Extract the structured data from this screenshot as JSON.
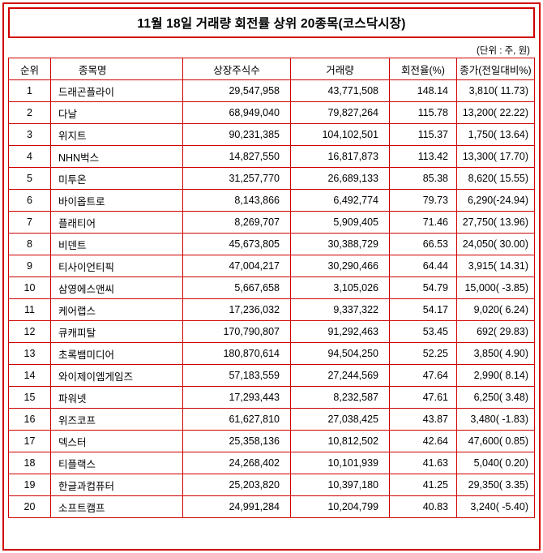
{
  "title": "11월 18일 거래량 회전률 상위 20종목(코스닥시장)",
  "unit_note": "(단위 : 주, 원)",
  "colors": {
    "border": "#d00000",
    "text": "#000000",
    "background": "#ffffff"
  },
  "chart_data": {
    "type": "table",
    "title": "11월 18일 거래량 회전률 상위 20종목(코스닥시장)",
    "unit_note": "(단위 : 주, 원)",
    "headers": [
      "순위",
      "종목명",
      "상장주식수",
      "거래량",
      "회전율(%)",
      "종가(전일대비%)"
    ],
    "rows": [
      [
        "1",
        "드래곤플라이",
        "29,547,958",
        "43,771,508",
        "148.14",
        "3,810( 11.73)"
      ],
      [
        "2",
        "다날",
        "68,949,040",
        "79,827,264",
        "115.78",
        "13,200( 22.22)"
      ],
      [
        "3",
        "위지트",
        "90,231,385",
        "104,102,501",
        "115.37",
        "1,750( 13.64)"
      ],
      [
        "4",
        "NHN벅스",
        "14,827,550",
        "16,817,873",
        "113.42",
        "13,300( 17.70)"
      ],
      [
        "5",
        "미투온",
        "31,257,770",
        "26,689,133",
        "85.38",
        "8,620( 15.55)"
      ],
      [
        "6",
        "바이옵트로",
        "8,143,866",
        "6,492,774",
        "79.73",
        "6,290(-24.94)"
      ],
      [
        "7",
        "플래티어",
        "8,269,707",
        "5,909,405",
        "71.46",
        "27,750( 13.96)"
      ],
      [
        "8",
        "비덴트",
        "45,673,805",
        "30,388,729",
        "66.53",
        "24,050( 30.00)"
      ],
      [
        "9",
        "티사이언티픽",
        "47,004,217",
        "30,290,466",
        "64.44",
        "3,915( 14.31)"
      ],
      [
        "10",
        "삼영에스앤씨",
        "5,667,658",
        "3,105,026",
        "54.79",
        "15,000( -3.85)"
      ],
      [
        "11",
        "케어랩스",
        "17,236,032",
        "9,337,322",
        "54.17",
        "9,020( 6.24)"
      ],
      [
        "12",
        "큐캐피탈",
        "170,790,807",
        "91,292,463",
        "53.45",
        "692( 29.83)"
      ],
      [
        "13",
        "초록뱀미디어",
        "180,870,614",
        "94,504,250",
        "52.25",
        "3,850( 4.90)"
      ],
      [
        "14",
        "와이제이엠게임즈",
        "57,183,559",
        "27,244,569",
        "47.64",
        "2,990( 8.14)"
      ],
      [
        "15",
        "파워넷",
        "17,293,443",
        "8,232,587",
        "47.61",
        "6,250( 3.48)"
      ],
      [
        "16",
        "위즈코프",
        "61,627,810",
        "27,038,425",
        "43.87",
        "3,480( -1.83)"
      ],
      [
        "17",
        "덱스터",
        "25,358,136",
        "10,812,502",
        "42.64",
        "47,600( 0.85)"
      ],
      [
        "18",
        "티플랙스",
        "24,268,402",
        "10,101,939",
        "41.63",
        "5,040( 0.20)"
      ],
      [
        "19",
        "한글과컴퓨터",
        "25,203,820",
        "10,397,180",
        "41.25",
        "29,350( 3.35)"
      ],
      [
        "20",
        "소프트캠프",
        "24,991,284",
        "10,204,799",
        "40.83",
        "3,240( -5.40)"
      ]
    ]
  }
}
